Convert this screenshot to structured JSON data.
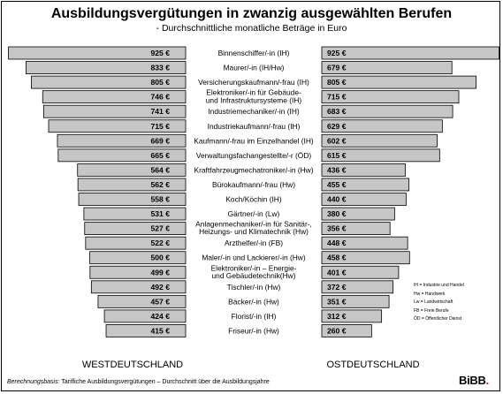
{
  "title": "Ausbildungsvergütungen in zwanzig ausgewählten Berufen",
  "subtitle": "- Durchschnittliche monatliche Beträge in Euro",
  "colors": {
    "bar_fill": "#c6c6c6",
    "bar_stroke": "#000000",
    "background": "#ffffff",
    "logo_accent": "#c0171c"
  },
  "chart_data": {
    "type": "bar",
    "orientation": "horizontal-diverging",
    "unit": "€",
    "categories": [
      "Binnenschiffer/-in (IH)",
      "Maurer/-in (IH/Hw)",
      "Versicherungskaufmann/-frau (IH)",
      "Elektroniker/-in für Gebäude- und Infrastruktursysteme (IH)",
      "Industriemechaniker/-in (IH)",
      "Industriekaufmann/-frau (IH)",
      "Kaufmann/-frau im Einzelhandel (IH)",
      "Verwaltungsfachangestellte/-r (ÖD)",
      "Kraftfahrzeugmechatroniker/-in (Hw)",
      "Bürokaufmann/-frau (Hw)",
      "Koch/Köchin (IH)",
      "Gärtner/-in (Lw)",
      "Anlagenmechaniker/-in für Sanitär-, Heizungs- und Klimatechnik (Hw)",
      "Arzthelfer/-in (FB)",
      "Maler/-in und Lackierer/-in (Hw)",
      "Elektroniker/-in – Energie- und Gebäudetechnik(Hw)",
      "Tischler/-in (Hw)",
      "Bäcker/-in (Hw)",
      "Florist/-in (IH)",
      "Friseur/-in (Hw)"
    ],
    "label_lines": [
      [
        "Binnenschiffer/-in (IH)"
      ],
      [
        "Maurer/-in (IH/Hw)"
      ],
      [
        "Versicherungskaufmann/-frau (IH)"
      ],
      [
        "Elektroniker/-in für Gebäude-",
        "und Infrastruktursysteme (IH)"
      ],
      [
        "Industriemechaniker/-in (IH)"
      ],
      [
        "Industriekaufmann/-frau (IH)"
      ],
      [
        "Kaufmann/-frau im Einzelhandel (IH)"
      ],
      [
        "Verwaltungsfachangestellte/-r (ÖD)"
      ],
      [
        "Kraftfahrzeugmechatroniker/-in (Hw)"
      ],
      [
        "Bürokaufmann/-frau (Hw)"
      ],
      [
        "Koch/Köchin (IH)"
      ],
      [
        "Gärtner/-in (Lw)"
      ],
      [
        "Anlagenmechaniker/-in für Sanitär-,",
        "Heizungs- und Klimatechnik (Hw)"
      ],
      [
        "Arzthelfer/-in (FB)"
      ],
      [
        "Maler/-in und Lackierer/-in (Hw)"
      ],
      [
        "Elektroniker/-in – Energie-",
        "und Gebäudetechnik(Hw)"
      ],
      [
        "Tischler/-in (Hw)"
      ],
      [
        "Bäcker/-in (Hw)"
      ],
      [
        "Florist/-in (IH)"
      ],
      [
        "Friseur/-in (Hw)"
      ]
    ],
    "series": [
      {
        "name": "WESTDEUTSCHLAND",
        "values": [
          925,
          833,
          805,
          746,
          741,
          715,
          669,
          665,
          564,
          562,
          558,
          531,
          527,
          522,
          500,
          499,
          492,
          457,
          424,
          415
        ]
      },
      {
        "name": "OSTDEUTSCHLAND",
        "values": [
          925,
          679,
          805,
          715,
          683,
          629,
          602,
          615,
          436,
          455,
          440,
          380,
          356,
          448,
          458,
          401,
          372,
          351,
          312,
          260
        ]
      }
    ]
  },
  "legend_lines": [
    "IH = Industrie und Handel",
    "Hw = Handwerk",
    "Lw = Landwirtschaft",
    "FB = Freie Berufe",
    "ÖD = Öffentlicher Dienst"
  ],
  "footnote": {
    "lead": "Berechnungsbasis:",
    "text": "Tarifliche Ausbildungsvergütungen – Durchschnitt über die Ausbildungsjahre"
  },
  "logo": {
    "text": "BiBB",
    "dot": "."
  }
}
